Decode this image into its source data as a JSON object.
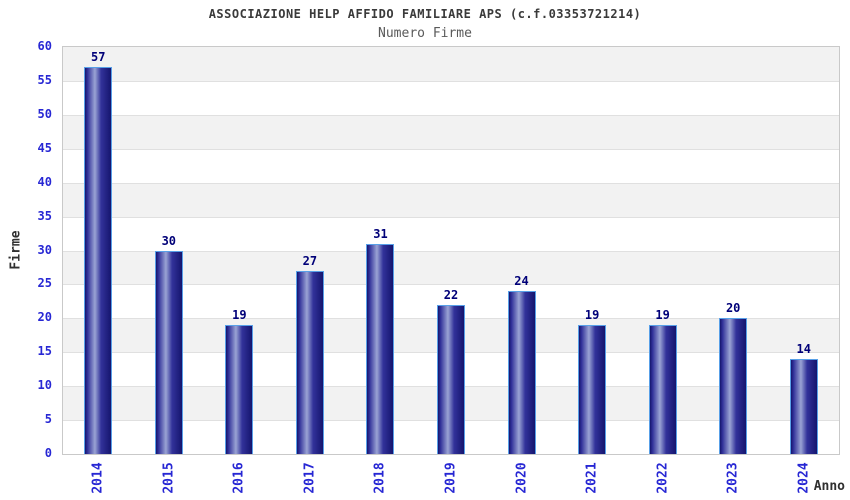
{
  "chart_data": {
    "type": "bar",
    "title": "ASSOCIAZIONE HELP AFFIDO FAMILIARE APS (c.f.03353721214)",
    "subtitle": "Numero Firme",
    "xlabel": "Anno",
    "ylabel": "Firme",
    "categories": [
      "2014",
      "2015",
      "2016",
      "2017",
      "2018",
      "2019",
      "2020",
      "2021",
      "2022",
      "2023",
      "2024"
    ],
    "values": [
      57,
      30,
      19,
      27,
      31,
      22,
      24,
      19,
      19,
      20,
      14
    ],
    "ylim": [
      0,
      60
    ],
    "ytick_step": 5,
    "grid": "horizontal-bands-alternating",
    "legend": "none",
    "colors": {
      "tick_label": "#2727d4",
      "value_label": "#000078",
      "title": "#3a3a3a",
      "subtitle": "#5a5a5a",
      "axis_label": "#303030",
      "band_gray": "#f2f2f2",
      "band_white": "#ffffff",
      "gridline": "#e0e0e0",
      "plot_border": "#c9c9c9",
      "bar_edge": "#15156e",
      "bar_mid": "#32329a",
      "bar_highlight": "#9aa3d4",
      "bar_border": "#58a0e8"
    }
  }
}
